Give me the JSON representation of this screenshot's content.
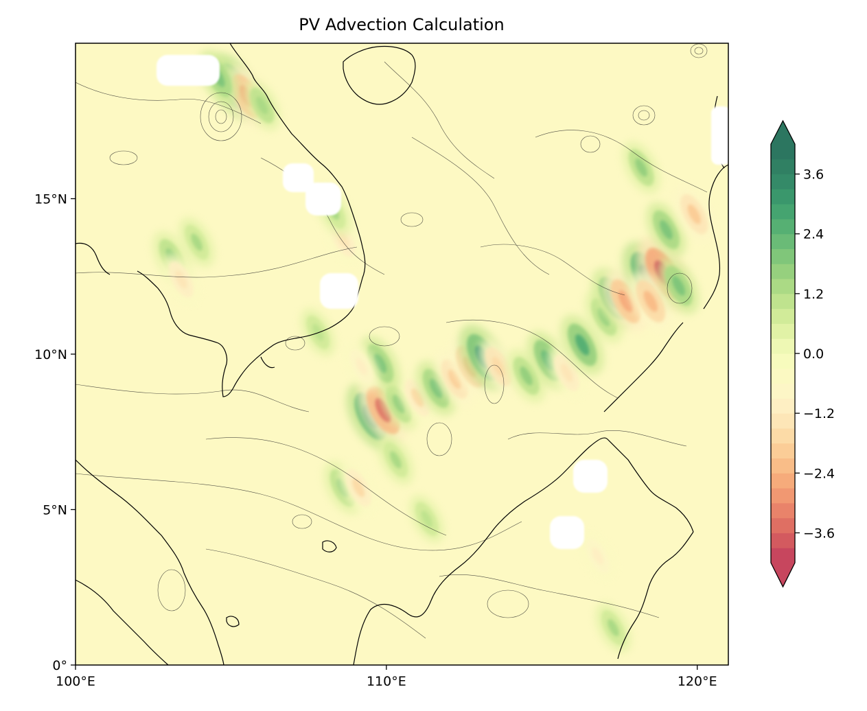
{
  "chart_data": {
    "type": "heatmap",
    "title": "PV Advection Calculation",
    "xlabel": "",
    "ylabel": "",
    "xlim": [
      100,
      121
    ],
    "ylim": [
      0,
      20
    ],
    "x_ticks": [
      {
        "value": 100,
        "label": "100°E"
      },
      {
        "value": 110,
        "label": "110°E"
      },
      {
        "value": 120,
        "label": "120°E"
      }
    ],
    "y_ticks": [
      {
        "value": 0,
        "label": "0°"
      },
      {
        "value": 5,
        "label": "5°N"
      },
      {
        "value": 10,
        "label": "10°N"
      },
      {
        "value": 15,
        "label": "15°N"
      }
    ],
    "colorbar": {
      "levels": [
        -4.2,
        -3.9,
        -3.6,
        -3.3,
        -3.0,
        -2.7,
        -2.4,
        -2.1,
        -1.8,
        -1.5,
        -1.2,
        -0.9,
        -0.6,
        -0.3,
        0.0,
        0.3,
        0.6,
        0.9,
        1.2,
        1.5,
        1.8,
        2.1,
        2.4,
        2.7,
        3.0,
        3.3,
        3.6,
        3.9,
        4.2
      ],
      "colors": [
        "#c7465e",
        "#d35a5f",
        "#df6f63",
        "#e9836a",
        "#f19872",
        "#f6ab7b",
        "#f9bd88",
        "#fbcd97",
        "#fcdba7",
        "#fde6b7",
        "#feefc3",
        "#fdf6c6",
        "#fbf9c2",
        "#f7fbbd",
        "#eef8b4",
        "#e1f2a6",
        "#d1eb99",
        "#bfe38e",
        "#abda85",
        "#96d07e",
        "#80c67a",
        "#6abb77",
        "#56b073",
        "#45a470",
        "#3a976c",
        "#348a68",
        "#308063",
        "#2c7660"
      ],
      "ticks": [
        {
          "value": -3.6,
          "label": "−3.6"
        },
        {
          "value": -2.4,
          "label": "−2.4"
        },
        {
          "value": -1.2,
          "label": "−1.2"
        },
        {
          "value": 0.0,
          "label": "0.0"
        },
        {
          "value": 1.2,
          "label": "1.2"
        },
        {
          "value": 2.4,
          "label": "2.4"
        },
        {
          "value": 3.6,
          "label": "3.6"
        }
      ],
      "extend": "both"
    },
    "features": [
      {
        "type": "anomaly",
        "lon": 109.5,
        "lat": 8.0,
        "value": 3.2
      },
      {
        "type": "anomaly",
        "lon": 109.9,
        "lat": 8.2,
        "value": -3.4
      },
      {
        "type": "anomaly",
        "lon": 110.4,
        "lat": 8.4,
        "value": 1.6
      },
      {
        "type": "anomaly",
        "lon": 111.0,
        "lat": 8.6,
        "value": -1.6
      },
      {
        "type": "anomaly",
        "lon": 111.6,
        "lat": 8.9,
        "value": 1.8
      },
      {
        "type": "anomaly",
        "lon": 112.2,
        "lat": 9.2,
        "value": -1.9
      },
      {
        "type": "anomaly",
        "lon": 112.7,
        "lat": 9.6,
        "value": -2.3
      },
      {
        "type": "anomaly",
        "lon": 113.1,
        "lat": 9.9,
        "value": 3.0
      },
      {
        "type": "anomaly",
        "lon": 113.6,
        "lat": 9.6,
        "value": -1.8
      },
      {
        "type": "anomaly",
        "lon": 114.5,
        "lat": 9.3,
        "value": 1.7
      },
      {
        "type": "anomaly",
        "lon": 115.2,
        "lat": 9.8,
        "value": 2.2
      },
      {
        "type": "anomaly",
        "lon": 115.8,
        "lat": 9.4,
        "value": -1.5
      },
      {
        "type": "anomaly",
        "lon": 116.3,
        "lat": 10.3,
        "value": 2.4
      },
      {
        "type": "anomaly",
        "lon": 117.0,
        "lat": 11.2,
        "value": 1.6
      },
      {
        "type": "anomaly",
        "lon": 117.3,
        "lat": 11.8,
        "value": 2.4
      },
      {
        "type": "anomaly",
        "lon": 117.7,
        "lat": 11.7,
        "value": -2.6
      },
      {
        "type": "anomaly",
        "lon": 118.4,
        "lat": 12.5,
        "value": 3.4
      },
      {
        "type": "anomaly",
        "lon": 118.9,
        "lat": 12.6,
        "value": -3.8
      },
      {
        "type": "anomaly",
        "lon": 118.5,
        "lat": 11.7,
        "value": -2.4
      },
      {
        "type": "anomaly",
        "lon": 119.4,
        "lat": 12.2,
        "value": 2.0
      },
      {
        "type": "anomaly",
        "lon": 119.0,
        "lat": 14.0,
        "value": 1.8
      },
      {
        "type": "anomaly",
        "lon": 119.9,
        "lat": 14.5,
        "value": -2.0
      },
      {
        "type": "anomaly",
        "lon": 118.2,
        "lat": 16.0,
        "value": 1.5
      },
      {
        "type": "anomaly",
        "lon": 105.1,
        "lat": 18.6,
        "value": 3.0
      },
      {
        "type": "anomaly",
        "lon": 105.5,
        "lat": 18.3,
        "value": -2.6
      },
      {
        "type": "anomaly",
        "lon": 104.6,
        "lat": 18.9,
        "value": 1.8
      },
      {
        "type": "anomaly",
        "lon": 106.0,
        "lat": 18.0,
        "value": 1.3
      },
      {
        "type": "anomaly",
        "lon": 103.1,
        "lat": 13.1,
        "value": 1.6
      },
      {
        "type": "anomaly",
        "lon": 103.4,
        "lat": 12.4,
        "value": -1.4
      },
      {
        "type": "anomaly",
        "lon": 103.9,
        "lat": 13.6,
        "value": 1.2
      },
      {
        "type": "anomaly",
        "lon": 108.6,
        "lat": 13.7,
        "value": -1.3
      },
      {
        "type": "anomaly",
        "lon": 108.3,
        "lat": 14.6,
        "value": 1.2
      },
      {
        "type": "anomaly",
        "lon": 107.8,
        "lat": 10.7,
        "value": 1.0
      },
      {
        "type": "anomaly",
        "lon": 109.8,
        "lat": 9.7,
        "value": 1.8
      },
      {
        "type": "anomaly",
        "lon": 109.2,
        "lat": 9.6,
        "value": -1.1
      },
      {
        "type": "anomaly",
        "lon": 108.6,
        "lat": 5.7,
        "value": 1.6
      },
      {
        "type": "anomaly",
        "lon": 109.1,
        "lat": 5.7,
        "value": -1.6
      },
      {
        "type": "anomaly",
        "lon": 110.3,
        "lat": 6.6,
        "value": 1.2
      },
      {
        "type": "anomaly",
        "lon": 111.3,
        "lat": 4.7,
        "value": 1.0
      },
      {
        "type": "anomaly",
        "lon": 116.8,
        "lat": 3.5,
        "value": -1.2
      },
      {
        "type": "anomaly",
        "lon": 117.3,
        "lat": 1.2,
        "value": 1.2
      }
    ],
    "contours_note": "Thin black contour lines overlay; coastlines of Indochina, Hainan, Borneo and the Philippines",
    "missing_regions": [
      {
        "lon": 103.7,
        "lat": 18.9
      },
      {
        "lon": 107.3,
        "lat": 15.7
      },
      {
        "lon": 108.0,
        "lat": 14.9
      },
      {
        "lon": 108.6,
        "lat": 12.0
      },
      {
        "lon": 120.8,
        "lat": 17.0
      },
      {
        "lon": 116.6,
        "lat": 6.1
      },
      {
        "lon": 115.8,
        "lat": 4.2
      }
    ]
  }
}
